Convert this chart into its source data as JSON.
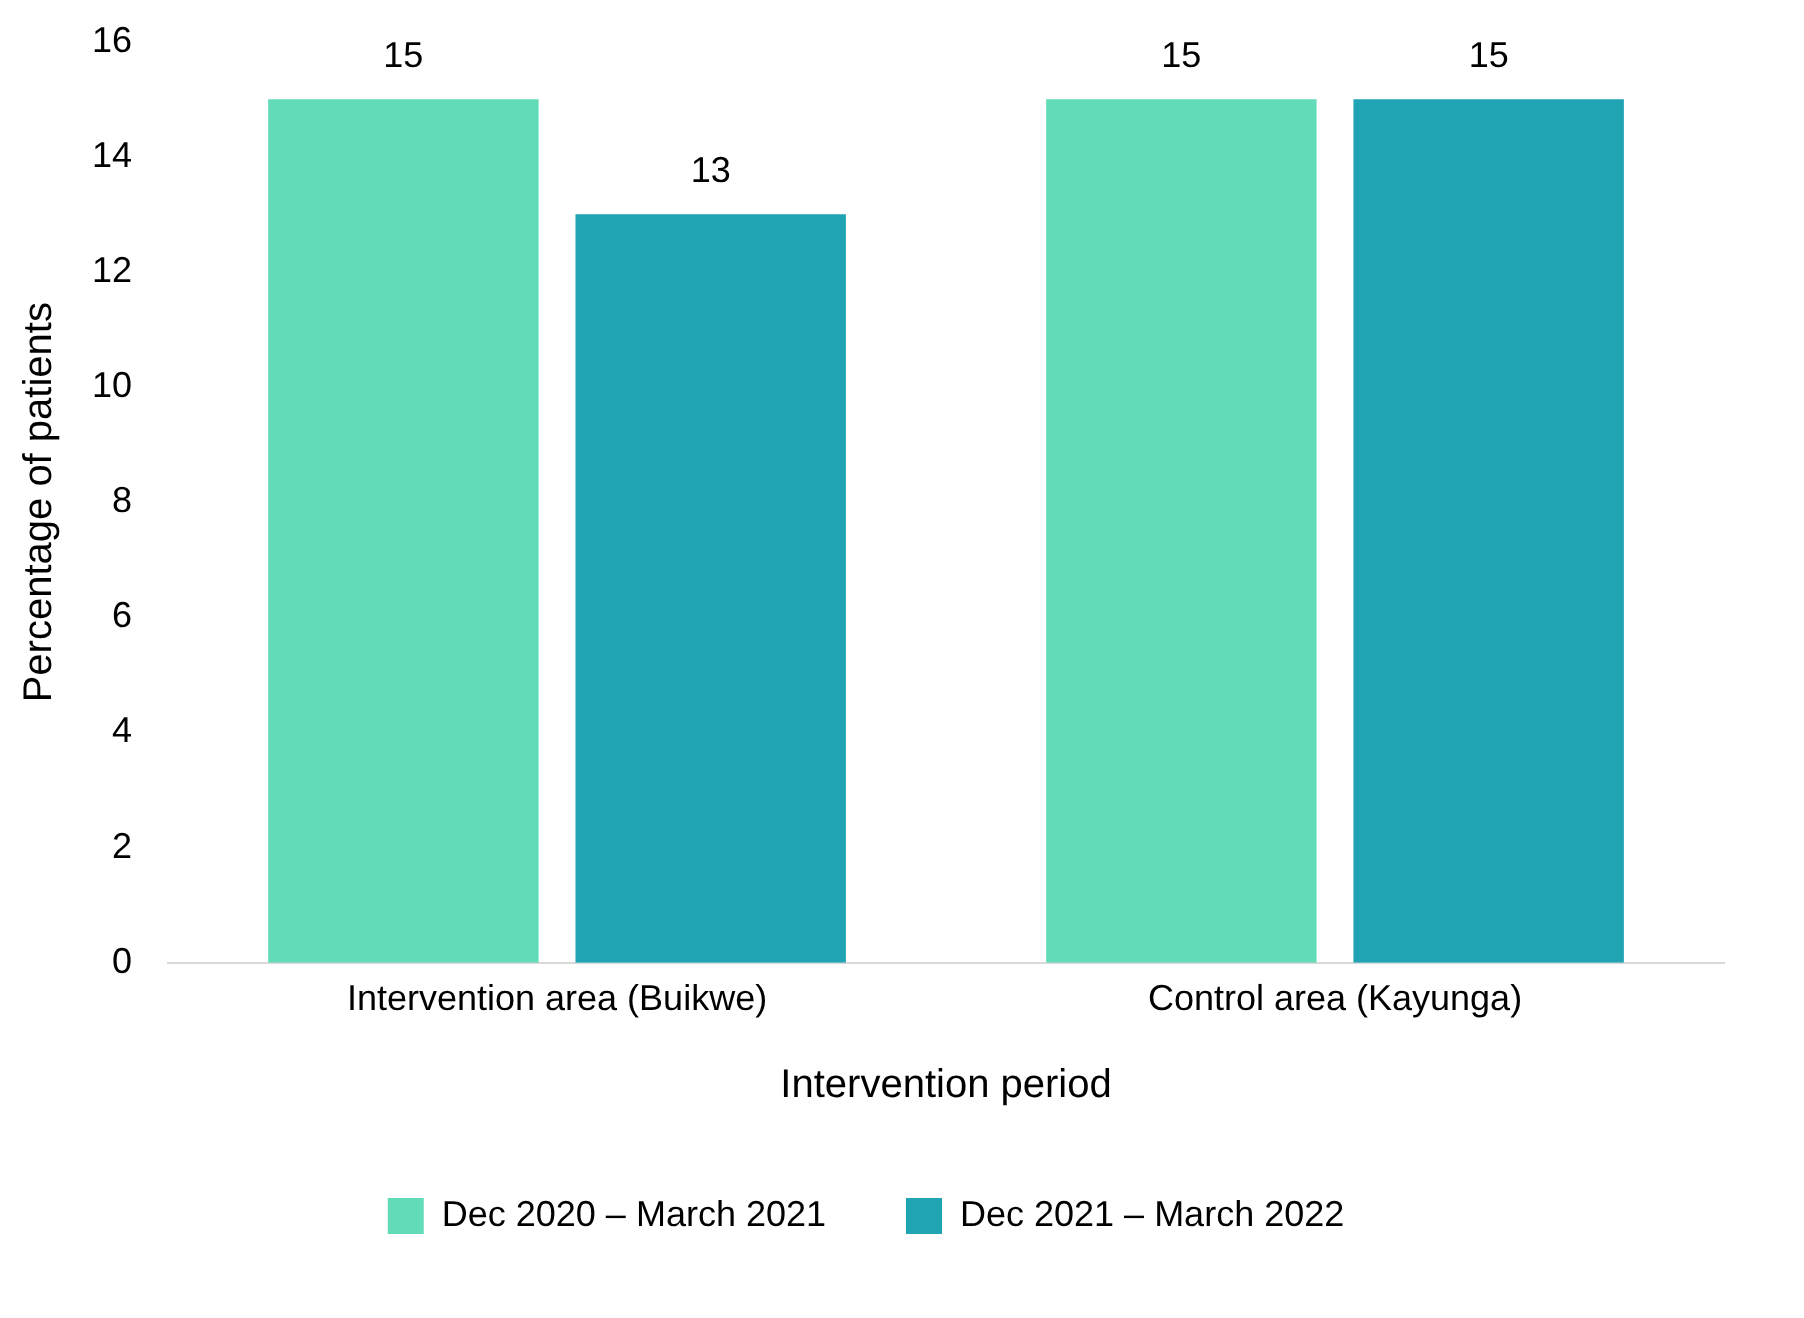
{
  "chart_data": {
    "type": "bar",
    "xlabel": "Intervention period",
    "ylabel": "Percentage of patients",
    "categories": [
      "Intervention area (Buikwe)",
      "Control area (Kayunga)"
    ],
    "series": [
      {
        "name": "Dec 2020 – March 2021",
        "color": "#62dbb8",
        "values": [
          15,
          15
        ]
      },
      {
        "name": "Dec 2021 – March 2022",
        "color": "#20a3b3",
        "values": [
          13,
          15
        ]
      }
    ],
    "ylim": [
      0,
      16
    ],
    "yticks": [
      0,
      2,
      4,
      6,
      8,
      10,
      12,
      14,
      16
    ],
    "grid": false,
    "legend": "bottom",
    "data_labels": true
  }
}
